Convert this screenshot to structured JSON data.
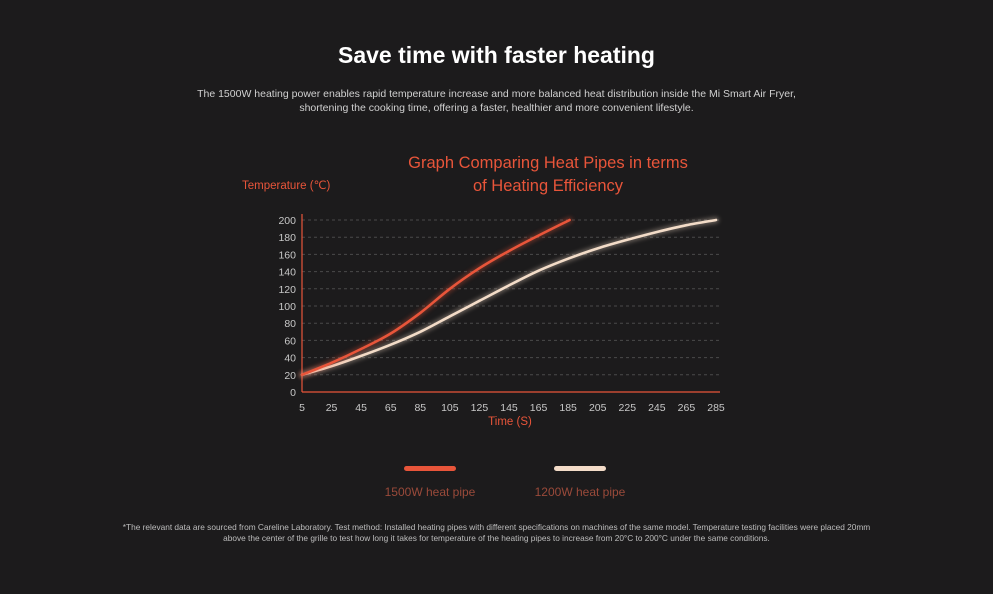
{
  "header": {
    "title": "Save time with faster heating",
    "description_line1": "The 1500W heating power enables rapid temperature increase and more balanced heat distribution inside the Mi Smart Air Fryer,",
    "description_line2": "shortening the cooking time, offering a faster, healthier and more convenient lifestyle."
  },
  "chart_data": {
    "type": "line",
    "title_line1": "Graph Comparing Heat Pipes in terms",
    "title_line2": "of Heating Efficiency",
    "xlabel": "Time (S)",
    "ylabel": "Temperature (℃)",
    "xlim": [
      5,
      285
    ],
    "ylim": [
      0,
      200
    ],
    "x_ticks": [
      5,
      25,
      45,
      65,
      85,
      105,
      125,
      145,
      165,
      185,
      205,
      225,
      245,
      265,
      285
    ],
    "y_ticks": [
      0,
      20,
      40,
      60,
      80,
      100,
      120,
      140,
      160,
      180,
      200
    ],
    "grid": "horizontal dashed",
    "legend_position": "bottom",
    "series": [
      {
        "name": "1500W heat pipe",
        "color": "#e8553a",
        "points": [
          [
            5,
            20
          ],
          [
            25,
            34
          ],
          [
            45,
            50
          ],
          [
            65,
            68
          ],
          [
            85,
            92
          ],
          [
            105,
            120
          ],
          [
            125,
            144
          ],
          [
            145,
            164
          ],
          [
            165,
            182
          ],
          [
            186,
            200
          ]
        ]
      },
      {
        "name": "1200W heat pipe",
        "color": "#f3dcc8",
        "points": [
          [
            5,
            20
          ],
          [
            25,
            30
          ],
          [
            45,
            42
          ],
          [
            65,
            55
          ],
          [
            85,
            70
          ],
          [
            105,
            88
          ],
          [
            125,
            106
          ],
          [
            145,
            124
          ],
          [
            165,
            141
          ],
          [
            185,
            155
          ],
          [
            205,
            167
          ],
          [
            225,
            177
          ],
          [
            245,
            186
          ],
          [
            265,
            194
          ],
          [
            285,
            200
          ]
        ]
      }
    ]
  },
  "footnote": {
    "line1": "*The relevant data are sourced from Careline Laboratory. Test method: Installed heating pipes with different specifications on machines of the same model. Temperature testing facilities were placed 20mm",
    "line2": "above the center of the grille to test how long it takes for temperature of the heating pipes to increase from 20°C to 200°C under the same conditions."
  }
}
